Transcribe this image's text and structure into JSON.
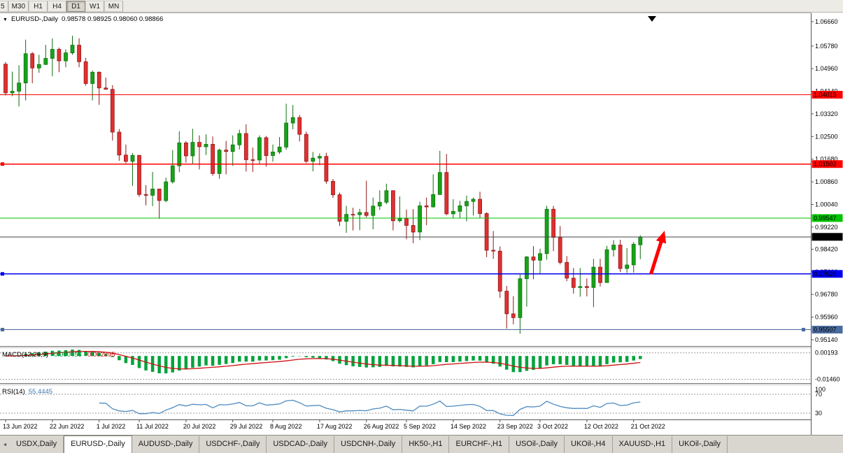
{
  "colors": {
    "candle_up": "#18a318",
    "candle_up_stroke": "#0b6d0b",
    "candle_down": "#e03030",
    "candle_down_stroke": "#8f1515",
    "current_price_line": "#444444",
    "current_label_bg": "#000000",
    "macd_hist": "#00a33c",
    "macd_signal": "#cc1111",
    "rsi_line": "#4d8ac0",
    "arrow": "#ff0000",
    "axis_text": "#000000"
  },
  "icons": {
    "symbol_dropdown": "▼",
    "tab_scroll_left": "◄"
  },
  "toolbar": {
    "timeframes": [
      {
        "label": "5",
        "active": false
      },
      {
        "label": "M30",
        "active": false
      },
      {
        "label": "H1",
        "active": false
      },
      {
        "label": "H4",
        "active": false
      },
      {
        "label": "D1",
        "active": true
      },
      {
        "label": "W1",
        "active": false
      },
      {
        "label": "MN",
        "active": false
      }
    ]
  },
  "chart": {
    "header": {
      "title": "EURUSD-,Daily",
      "ohlc": "0.98578 0.98925 0.98060 0.98866"
    }
  },
  "indicators": {
    "macd": {
      "label": "MACD(12,26,9)",
      "value_main": "-0.000456",
      "value_signal": "-0.002895",
      "params": {
        "fast": 12,
        "slow": 26,
        "signal": 9
      },
      "axis_labels": [
        {
          "text": "0.00193",
          "value": 0.00193
        },
        {
          "text": "-0.01460",
          "value": -0.0146
        }
      ]
    },
    "rsi": {
      "label": "RSI(14)",
      "value": "55.4445",
      "period": 14,
      "axis_labels": [
        {
          "text": "100",
          "value": 100
        },
        {
          "text": "70",
          "value": 70
        },
        {
          "text": "30",
          "value": 30
        }
      ],
      "levels": [
        70,
        30
      ]
    }
  },
  "chart_data": {
    "type": "candlestick",
    "symbol": "EURUSD-",
    "timeframe": "Daily",
    "current": {
      "open": 0.98578,
      "high": 0.98925,
      "low": 0.9806,
      "close": 0.98866
    },
    "ylim": [
      0.948,
      1.07
    ],
    "y_ticks": [
      1.0666,
      1.0578,
      1.0496,
      1.0414,
      1.0332,
      1.025,
      1.0168,
      1.0086,
      1.0004,
      0.9922,
      0.9842,
      0.976,
      0.9678,
      0.9596,
      0.9514
    ],
    "x_ticks": [
      {
        "label": "13 Jun 2022",
        "i": 0
      },
      {
        "label": "22 Jun 2022",
        "i": 7
      },
      {
        "label": "1 Jul 2022",
        "i": 14
      },
      {
        "label": "11 Jul 2022",
        "i": 20
      },
      {
        "label": "20 Jul 2022",
        "i": 27
      },
      {
        "label": "29 Jul 2022",
        "i": 34
      },
      {
        "label": "8 Aug 2022",
        "i": 40
      },
      {
        "label": "17 Aug 2022",
        "i": 47
      },
      {
        "label": "26 Aug 2022",
        "i": 54
      },
      {
        "label": "5 Sep 2022",
        "i": 60
      },
      {
        "label": "14 Sep 2022",
        "i": 67
      },
      {
        "label": "23 Sep 2022",
        "i": 74
      },
      {
        "label": "3 Oct 2022",
        "i": 80
      },
      {
        "label": "12 Oct 2022",
        "i": 87
      },
      {
        "label": "21 Oct 2022",
        "i": 94
      }
    ],
    "hlines": [
      {
        "price": 1.04015,
        "label": "1.04015",
        "color": "#ff0000",
        "handles": []
      },
      {
        "price": 1.01502,
        "label": "1.01502",
        "color": "#ff0000",
        "handles": [
          "left"
        ]
      },
      {
        "price": 0.99547,
        "label": "0.99547",
        "color": "#00c400",
        "handles": []
      },
      {
        "price": 0.97526,
        "label": "0.97526",
        "color": "#0000ee",
        "handles": [
          "left"
        ]
      },
      {
        "price": 0.95507,
        "label": "0.95507",
        "color": "#4a6b9e",
        "handles": [
          "left",
          "right"
        ]
      }
    ],
    "current_price": {
      "price": 0.98866,
      "label": "0.98866"
    },
    "candles": [
      [
        1.0512,
        1.052,
        1.0399,
        1.0408
      ],
      [
        1.0408,
        1.0485,
        1.0396,
        1.0414
      ],
      [
        1.0414,
        1.0508,
        1.0359,
        1.0444
      ],
      [
        1.0444,
        1.0601,
        1.0381,
        1.055
      ],
      [
        1.055,
        1.0556,
        1.0443,
        1.0498
      ],
      [
        1.0498,
        1.0546,
        1.0481,
        1.0511
      ],
      [
        1.0511,
        1.0582,
        1.0509,
        1.0533
      ],
      [
        1.0533,
        1.0605,
        1.0468,
        1.0566
      ],
      [
        1.0566,
        1.0572,
        1.0483,
        1.0524
      ],
      [
        1.0524,
        1.0566,
        1.0501,
        1.0553
      ],
      [
        1.0553,
        1.0615,
        1.0546,
        1.0581
      ],
      [
        1.0581,
        1.0606,
        1.0501,
        1.0521
      ],
      [
        1.0521,
        1.0535,
        1.0434,
        1.0442
      ],
      [
        1.0442,
        1.0489,
        1.0381,
        1.0483
      ],
      [
        1.0483,
        1.0486,
        1.0365,
        1.0426
      ],
      [
        1.0426,
        1.0463,
        1.042,
        1.0421
      ],
      [
        1.0421,
        1.0436,
        1.0235,
        1.0266
      ],
      [
        1.0266,
        1.0277,
        1.0162,
        1.0183
      ],
      [
        1.0183,
        1.0221,
        1.0153,
        1.016
      ],
      [
        1.016,
        1.019,
        1.0071,
        1.0182
      ],
      [
        1.0182,
        1.0183,
        1.0032,
        1.004
      ],
      [
        1.004,
        1.0074,
        1.0001,
        1.0037
      ],
      [
        1.0037,
        1.0122,
        0.9998,
        1.006
      ],
      [
        1.006,
        1.0061,
        0.9952,
        1.0018
      ],
      [
        1.0018,
        1.0101,
        1.0012,
        1.0086
      ],
      [
        1.0086,
        1.0201,
        1.008,
        1.0144
      ],
      [
        1.0144,
        1.0269,
        1.0121,
        1.0227
      ],
      [
        1.0227,
        1.0233,
        1.0155,
        1.018
      ],
      [
        1.018,
        1.0278,
        1.0152,
        1.0229
      ],
      [
        1.0229,
        1.0254,
        1.0131,
        1.0213
      ],
      [
        1.0213,
        1.0258,
        1.0183,
        1.0222
      ],
      [
        1.0222,
        1.025,
        1.0108,
        1.0116
      ],
      [
        1.0116,
        1.0206,
        1.0097,
        1.0201
      ],
      [
        1.0201,
        1.0234,
        1.0113,
        1.0196
      ],
      [
        1.0196,
        1.0254,
        1.0144,
        1.022
      ],
      [
        1.022,
        1.0275,
        1.0203,
        1.0261
      ],
      [
        1.0261,
        1.0294,
        1.0123,
        1.0166
      ],
      [
        1.0166,
        1.021,
        1.0122,
        1.0165
      ],
      [
        1.0165,
        1.0254,
        1.0152,
        1.0246
      ],
      [
        1.0246,
        1.0252,
        1.0141,
        1.0181
      ],
      [
        1.0181,
        1.0221,
        1.0159,
        1.0194
      ],
      [
        1.0194,
        1.0248,
        1.0187,
        1.0212
      ],
      [
        1.0212,
        1.0369,
        1.0202,
        1.0299
      ],
      [
        1.0299,
        1.0364,
        1.0276,
        1.0319
      ],
      [
        1.0319,
        1.0328,
        1.0232,
        1.0258
      ],
      [
        1.0258,
        1.0268,
        1.0154,
        1.016
      ],
      [
        1.016,
        1.0194,
        1.0124,
        1.0172
      ],
      [
        1.0172,
        1.0189,
        1.0146,
        1.0178
      ],
      [
        1.0178,
        1.0191,
        1.0079,
        1.0088
      ],
      [
        1.0088,
        1.0096,
        1.0028,
        1.0039
      ],
      [
        1.0039,
        1.0047,
        0.9926,
        0.9943
      ],
      [
        0.9943,
        0.9999,
        0.9901,
        0.9968
      ],
      [
        0.9968,
        0.9992,
        0.991,
        0.9967
      ],
      [
        0.9967,
        0.9988,
        0.9911,
        0.9975
      ],
      [
        0.9975,
        1.009,
        0.9957,
        0.9964
      ],
      [
        0.9964,
        1.0029,
        0.9914,
        0.9998
      ],
      [
        0.9998,
        1.0055,
        0.9984,
        1.0012
      ],
      [
        1.0012,
        1.0079,
        1.0005,
        1.0054
      ],
      [
        1.0054,
        1.0055,
        0.991,
        0.9945
      ],
      [
        0.9945,
        1.0033,
        0.9939,
        0.9953
      ],
      [
        0.9953,
        0.9985,
        0.9878,
        0.9928
      ],
      [
        0.9928,
        0.9987,
        0.9864,
        0.9904
      ],
      [
        0.9904,
        1.0014,
        0.9875,
        0.9999
      ],
      [
        0.9999,
        1.0029,
        0.9929,
        0.9995
      ],
      [
        0.9995,
        1.0113,
        0.9993,
        1.004
      ],
      [
        1.004,
        1.0198,
        1.004,
        1.012
      ],
      [
        1.012,
        1.0187,
        0.9965,
        0.997
      ],
      [
        0.997,
        1.0023,
        0.9955,
        0.9979
      ],
      [
        0.9979,
        1.0017,
        0.9954,
        0.9999
      ],
      [
        0.9999,
        1.0036,
        0.9943,
        1.0015
      ],
      [
        1.0015,
        1.0029,
        0.9964,
        1.0023
      ],
      [
        1.0023,
        1.005,
        0.9955,
        0.9971
      ],
      [
        0.9971,
        0.9976,
        0.9813,
        0.9838
      ],
      [
        0.9838,
        0.9908,
        0.9807,
        0.9835
      ],
      [
        0.9835,
        0.9852,
        0.9666,
        0.969
      ],
      [
        0.969,
        0.9709,
        0.9554,
        0.9608
      ],
      [
        0.9608,
        0.9672,
        0.957,
        0.9594
      ],
      [
        0.9594,
        0.975,
        0.9536,
        0.9735
      ],
      [
        0.9735,
        0.9817,
        0.9634,
        0.9814
      ],
      [
        0.9814,
        0.9853,
        0.9733,
        0.9802
      ],
      [
        0.9802,
        0.9844,
        0.9753,
        0.9826
      ],
      [
        0.9826,
        0.9999,
        0.9804,
        0.9987
      ],
      [
        0.9987,
        0.9999,
        0.9835,
        0.9885
      ],
      [
        0.9885,
        0.9926,
        0.9787,
        0.9794
      ],
      [
        0.9794,
        0.9817,
        0.9726,
        0.9737
      ],
      [
        0.9737,
        0.9774,
        0.9681,
        0.9703
      ],
      [
        0.9703,
        0.9774,
        0.967,
        0.9707
      ],
      [
        0.9707,
        0.9736,
        0.9671,
        0.9703
      ],
      [
        0.9703,
        0.9807,
        0.9632,
        0.9777
      ],
      [
        0.9777,
        0.9807,
        0.9707,
        0.9721
      ],
      [
        0.9721,
        0.9854,
        0.9721,
        0.984
      ],
      [
        0.984,
        0.9875,
        0.9815,
        0.9857
      ],
      [
        0.9857,
        0.9876,
        0.9759,
        0.9772
      ],
      [
        0.9772,
        0.9846,
        0.9756,
        0.9785
      ],
      [
        0.9785,
        0.9868,
        0.9757,
        0.986
      ],
      [
        0.98578,
        0.98925,
        0.9806,
        0.98866
      ]
    ]
  },
  "tabbar": {
    "tabs": [
      {
        "label": "USDX,Daily",
        "active": false
      },
      {
        "label": "EURUSD-,Daily",
        "active": true
      },
      {
        "label": "AUDUSD-,Daily",
        "active": false
      },
      {
        "label": "USDCHF-,Daily",
        "active": false
      },
      {
        "label": "USDCAD-,Daily",
        "active": false
      },
      {
        "label": "USDCNH-,Daily",
        "active": false
      },
      {
        "label": "HK50-,H1",
        "active": false
      },
      {
        "label": "EURCHF-,H1",
        "active": false
      },
      {
        "label": "USOil-,Daily",
        "active": false
      },
      {
        "label": "UKOil-,H4",
        "active": false
      },
      {
        "label": "XAUUSD-,H1",
        "active": false
      },
      {
        "label": "UKOil-,Daily",
        "active": false
      }
    ]
  }
}
